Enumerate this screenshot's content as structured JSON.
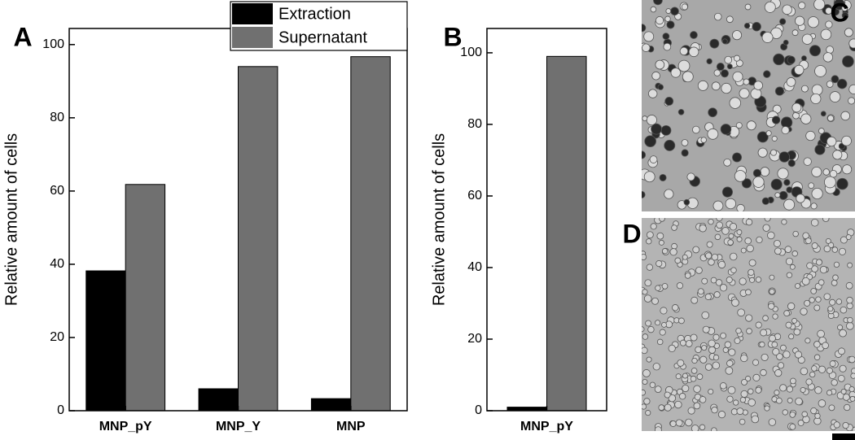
{
  "chart_data": [
    {
      "type": "bar",
      "panel_label": "A",
      "y_label": "Relative amount of cells",
      "categories": [
        "MNP_pY",
        "MNP_Y",
        "MNP"
      ],
      "series": [
        {
          "name": "Extraction",
          "color": "#000000",
          "values": [
            38.2,
            6,
            3.3
          ]
        },
        {
          "name": "Supernatant",
          "color": "#707070",
          "values": [
            61.8,
            94,
            96.7
          ]
        }
      ],
      "ylim": [
        0,
        104.4
      ],
      "yticks": [
        0,
        20,
        40,
        60,
        80,
        100
      ],
      "legend": true
    },
    {
      "type": "bar",
      "panel_label": "B",
      "y_label": "Relative amount of cells",
      "categories": [
        "MNP_pY"
      ],
      "series": [
        {
          "color": "#000000",
          "values": [
            1
          ]
        },
        {
          "color": "#707070",
          "values": [
            99
          ]
        }
      ],
      "ylim": [
        0,
        106.8
      ],
      "yticks": [
        0,
        20,
        40,
        60,
        80,
        100
      ],
      "legend": false
    }
  ],
  "images": [
    {
      "label": "C"
    },
    {
      "label": "D"
    }
  ]
}
